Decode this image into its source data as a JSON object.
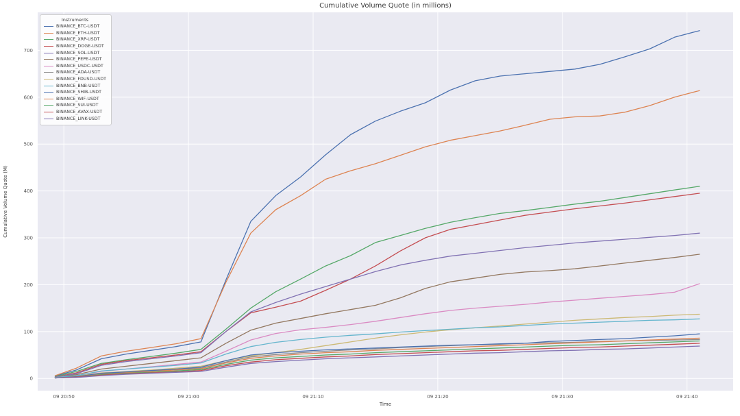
{
  "figure": {
    "background": "#ffffff",
    "plot_background": "#eaeaf2",
    "grid_color": "#ffffff",
    "text_color": "#3b3b3b",
    "tick_color": "#555555"
  },
  "chart_data": {
    "type": "line",
    "title": "Cumulative Volume Quote (in millions)",
    "xlabel": "Time",
    "ylabel": "Cumulative Volume Quote (M)",
    "legend_title": "Instruments",
    "legend_position": "upper-left",
    "grid": true,
    "x_unit": "minutes after 09 20:50",
    "x_minutes": [
      -0.7,
      1,
      3,
      5,
      7,
      9,
      11,
      13,
      15,
      17,
      19,
      21,
      23,
      25,
      27,
      29,
      31,
      33,
      35,
      37,
      39,
      41,
      43,
      45,
      47,
      49,
      51
    ],
    "xlim_minutes": [
      -2.1,
      53.7
    ],
    "ylim": [
      -26,
      781
    ],
    "x_ticks": [
      {
        "label": "09 20:50",
        "minute": 0
      },
      {
        "label": "09 21:00",
        "minute": 10
      },
      {
        "label": "09 21:10",
        "minute": 20
      },
      {
        "label": "09 21:20",
        "minute": 30
      },
      {
        "label": "09 21:30",
        "minute": 40
      },
      {
        "label": "09 21:40",
        "minute": 50
      }
    ],
    "y_ticks": [
      0,
      100,
      200,
      300,
      400,
      500,
      600,
      700
    ],
    "series": [
      {
        "name": "BINANCE_BTC-USDT",
        "color": "#4c72b0",
        "values": [
          5,
          18,
          42,
          52,
          60,
          68,
          78,
          210,
          335,
          390,
          430,
          477,
          520,
          549,
          570,
          588,
          615,
          635,
          645,
          650,
          655,
          660,
          670,
          686,
          703,
          728,
          742
        ]
      },
      {
        "name": "BINANCE_ETH-USDT",
        "color": "#dd8452",
        "values": [
          6,
          22,
          48,
          58,
          66,
          74,
          85,
          205,
          310,
          360,
          390,
          425,
          443,
          458,
          476,
          494,
          508,
          518,
          528,
          540,
          553,
          558,
          560,
          568,
          582,
          600,
          614
        ]
      },
      {
        "name": "BINANCE_XRP-USDT",
        "color": "#55a868",
        "values": [
          4,
          15,
          32,
          40,
          47,
          54,
          62,
          105,
          150,
          185,
          212,
          240,
          262,
          290,
          305,
          320,
          333,
          343,
          352,
          358,
          365,
          372,
          378,
          386,
          394,
          402,
          410
        ]
      },
      {
        "name": "BINANCE_DOGE-USDT",
        "color": "#c44e52",
        "values": [
          3,
          12,
          30,
          38,
          44,
          50,
          57,
          100,
          140,
          152,
          165,
          188,
          212,
          240,
          272,
          300,
          318,
          328,
          338,
          348,
          355,
          362,
          368,
          374,
          381,
          388,
          395
        ]
      },
      {
        "name": "BINANCE_SOL-USDT",
        "color": "#8172b3",
        "values": [
          3,
          10,
          28,
          36,
          42,
          48,
          55,
          100,
          142,
          162,
          180,
          196,
          212,
          228,
          242,
          252,
          261,
          267,
          273,
          279,
          284,
          289,
          293,
          297,
          301,
          305,
          310
        ]
      },
      {
        "name": "BINANCE_PEPE-USDT",
        "color": "#937860",
        "values": [
          2,
          8,
          20,
          26,
          32,
          38,
          44,
          75,
          103,
          118,
          128,
          138,
          147,
          156,
          172,
          192,
          206,
          214,
          222,
          227,
          230,
          234,
          240,
          246,
          252,
          258,
          265
        ]
      },
      {
        "name": "BINANCE_USDC-USDT",
        "color": "#da8bc3",
        "values": [
          2,
          6,
          15,
          20,
          25,
          30,
          35,
          58,
          82,
          96,
          104,
          109,
          115,
          122,
          130,
          138,
          145,
          150,
          154,
          158,
          163,
          167,
          171,
          175,
          179,
          184,
          202
        ]
      },
      {
        "name": "BINANCE_ADA-USDT",
        "color": "#8c8c8c",
        "values": [
          1,
          4,
          10,
          13,
          16,
          19,
          22,
          35,
          46,
          51,
          55,
          58,
          61,
          63,
          66,
          68,
          70,
          72,
          73,
          75,
          76,
          77,
          79,
          80,
          81,
          82,
          83
        ]
      },
      {
        "name": "BINANCE_FDUSD-USDT",
        "color": "#ccb974",
        "values": [
          2,
          5,
          12,
          15,
          18,
          22,
          26,
          38,
          48,
          55,
          62,
          70,
          78,
          86,
          93,
          99,
          104,
          108,
          112,
          116,
          120,
          124,
          127,
          130,
          132,
          135,
          137
        ]
      },
      {
        "name": "BINANCE_BNB-USDT",
        "color": "#64b5cd",
        "values": [
          2,
          6,
          16,
          20,
          24,
          28,
          33,
          52,
          68,
          77,
          83,
          88,
          92,
          95,
          99,
          102,
          105,
          108,
          110,
          113,
          116,
          118,
          120,
          122,
          124,
          125,
          127
        ]
      },
      {
        "name": "BINANCE_SHIB-USDT",
        "color": "#4c72b0",
        "values": [
          1,
          4,
          11,
          14,
          17,
          20,
          24,
          38,
          50,
          55,
          58,
          61,
          63,
          65,
          67,
          69,
          71,
          72,
          74,
          75,
          79,
          81,
          83,
          85,
          88,
          91,
          95
        ]
      },
      {
        "name": "BINANCE_WIF-USDT",
        "color": "#dd8452",
        "values": [
          1,
          3,
          9,
          12,
          15,
          18,
          21,
          33,
          43,
          48,
          52,
          55,
          57,
          60,
          62,
          64,
          66,
          68,
          70,
          72,
          74,
          76,
          78,
          80,
          82,
          84,
          86
        ]
      },
      {
        "name": "BINANCE_SUI-USDT",
        "color": "#55a868",
        "values": [
          1,
          3,
          8,
          11,
          13,
          16,
          19,
          30,
          39,
          44,
          47,
          50,
          52,
          55,
          57,
          59,
          61,
          63,
          65,
          67,
          69,
          71,
          72,
          74,
          76,
          78,
          80
        ]
      },
      {
        "name": "BINANCE_AVAX-USDT",
        "color": "#c44e52",
        "values": [
          1,
          3,
          7,
          10,
          12,
          14,
          17,
          27,
          35,
          40,
          43,
          46,
          48,
          51,
          53,
          55,
          57,
          59,
          60,
          62,
          64,
          66,
          67,
          69,
          71,
          73,
          75
        ]
      },
      {
        "name": "BINANCE_LINK-USDT",
        "color": "#8172b3",
        "values": [
          1,
          2,
          6,
          9,
          11,
          13,
          15,
          24,
          32,
          36,
          39,
          42,
          44,
          46,
          48,
          50,
          52,
          54,
          55,
          57,
          59,
          60,
          62,
          63,
          65,
          67,
          69
        ]
      }
    ]
  }
}
